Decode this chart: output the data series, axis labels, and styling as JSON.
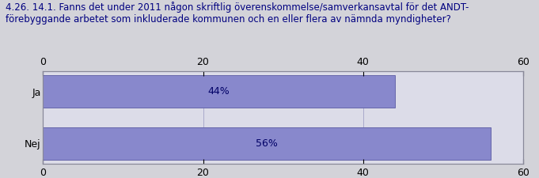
{
  "title_line1": "4.26. 14.1. Fanns det under 2011 någon skriftlig överenskommelse/samverkansavtal för det ANDT-",
  "title_line2": "förebyggande arbetet som inkluderade kommunen och en eller flera av nämnda myndigheter?",
  "categories": [
    "Nej",
    "Ja"
  ],
  "values": [
    56,
    44
  ],
  "labels": [
    "56%",
    "44%"
  ],
  "bar_color": "#8888cc",
  "bar_edge_color": "#6666aa",
  "xlim": [
    0,
    60
  ],
  "xticks": [
    0,
    20,
    40,
    60
  ],
  "background_color": "#d3d3d9",
  "plot_bg_color": "#dcdce8",
  "title_color": "#000080",
  "title_fontsize": 8.5,
  "label_fontsize": 9,
  "tick_fontsize": 9,
  "bar_height": 0.62
}
